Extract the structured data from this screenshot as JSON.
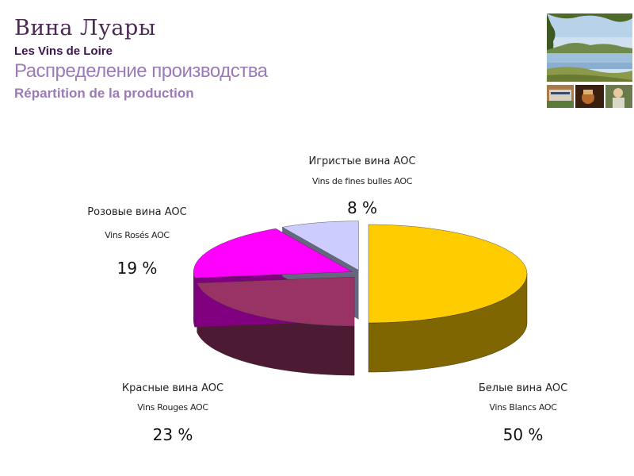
{
  "header": {
    "title_ru": "Вина Луары",
    "title_fr": "Les Vins de Loire",
    "subtitle_ru": "Распределение производства",
    "subtitle_fr": "Répartition de la production"
  },
  "colors": {
    "title": "#4a2a55",
    "subtitle": "#9b7ab8"
  },
  "chart_data": {
    "type": "pie",
    "style": "3d-exploded",
    "slices": [
      {
        "label_ru": "Белые вина AOC",
        "label_fr": "Vins Blancs AOC",
        "value": 50,
        "value_label": "50 %",
        "color": "#ffcc00",
        "side_color": "#7f6600"
      },
      {
        "label_ru": "Красные вина AOC",
        "label_fr": "Vins Rouges AOC",
        "value": 23,
        "value_label": "23 %",
        "color": "#993366",
        "side_color": "#4d1a33"
      },
      {
        "label_ru": "Розовые вина AOC",
        "label_fr": "Vins Rosés AOC",
        "value": 19,
        "value_label": "19 %",
        "color": "#ff00ff",
        "side_color": "#800080"
      },
      {
        "label_ru": "Игристые вина AOC",
        "label_fr": "Vins de fines bulles AOC",
        "value": 8,
        "value_label": "8 %",
        "color": "#ccccff",
        "side_color": "#666680"
      }
    ]
  }
}
